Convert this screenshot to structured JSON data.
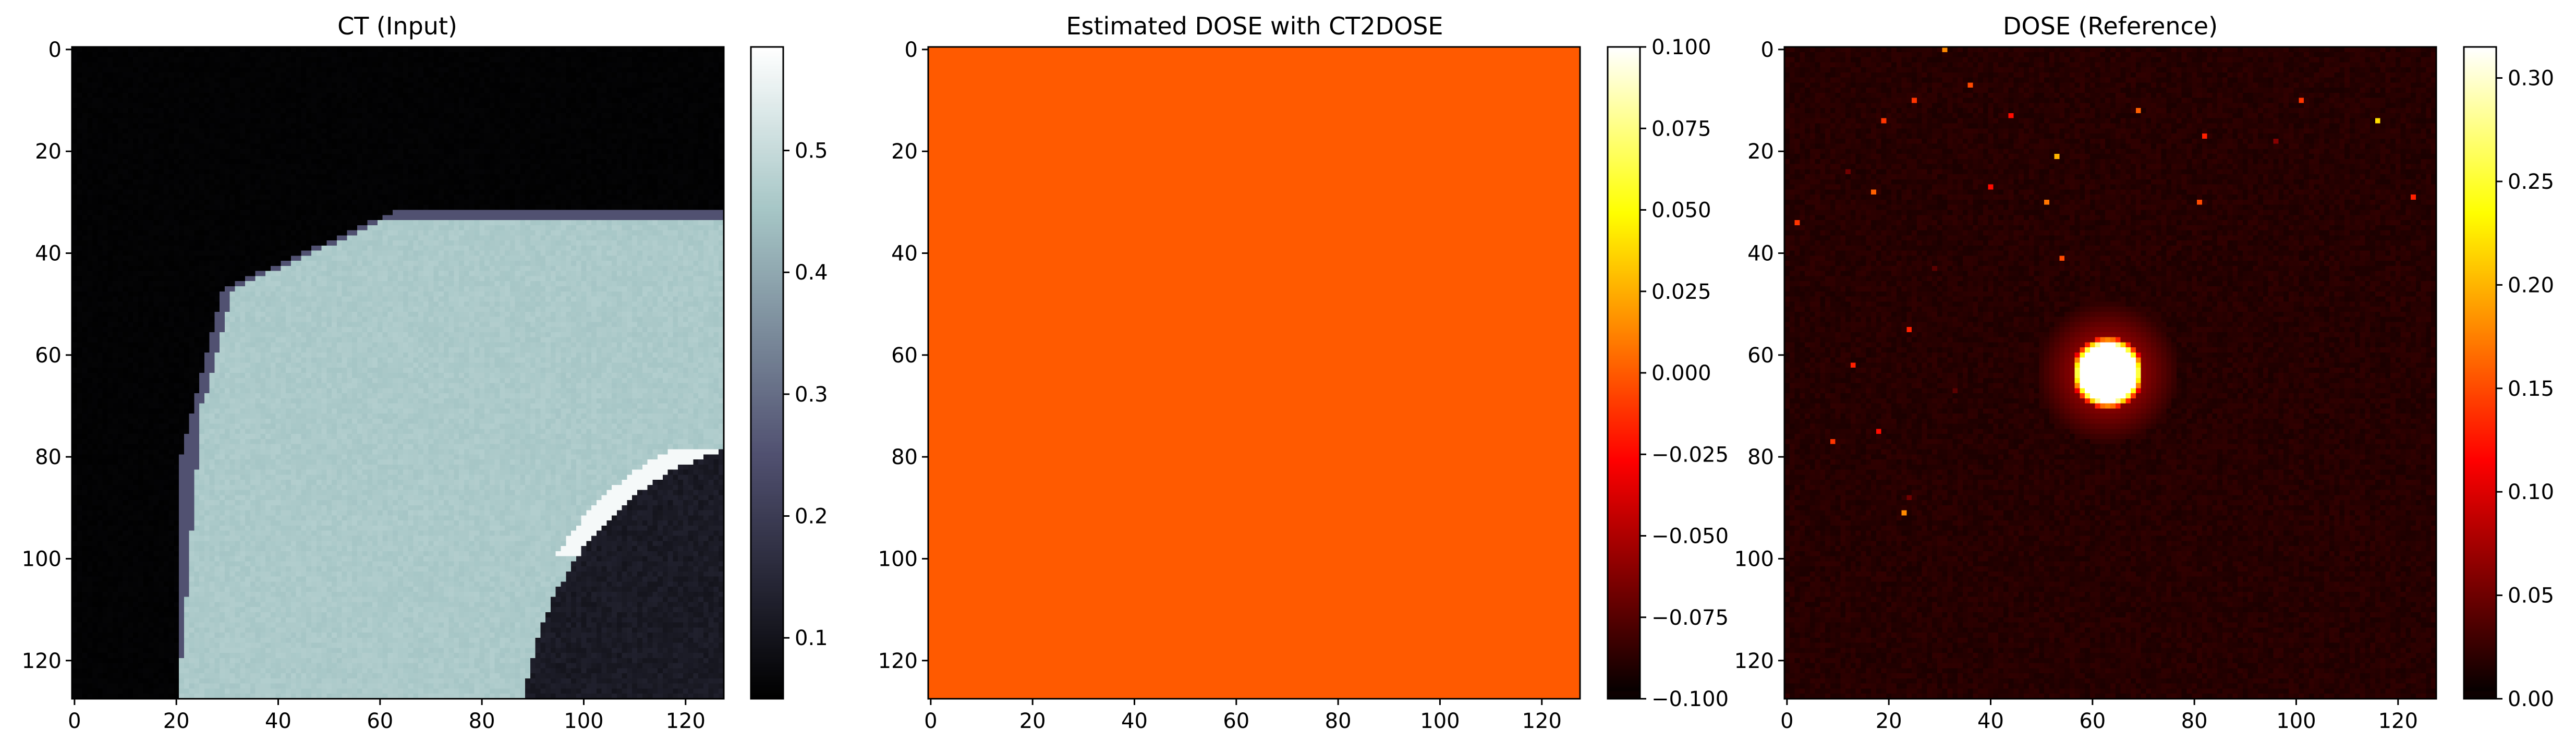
{
  "figure": {
    "background": "#ffffff"
  },
  "chart_data": [
    {
      "type": "heatmap",
      "title": "CT (Input)",
      "colormap": "bone",
      "image_shape": [
        128,
        128
      ],
      "x_ticks": [
        0,
        20,
        40,
        60,
        80,
        100,
        120
      ],
      "y_ticks": [
        0,
        20,
        40,
        60,
        80,
        100,
        120
      ],
      "xlim": [
        -0.5,
        127.5
      ],
      "ylim": [
        127.5,
        -0.5
      ],
      "colorbar": {
        "vmin": 0.05,
        "vmax": 0.585,
        "ticks": [
          0.1,
          0.2,
          0.3,
          0.4,
          0.5
        ],
        "tick_labels": [
          "0.1",
          "0.2",
          "0.3",
          "0.4",
          "0.5"
        ]
      },
      "content": {
        "background_value": 0.052,
        "tissue_value": 0.46,
        "lung_value": 0.1,
        "bright_edge_value": 0.57
      }
    },
    {
      "type": "heatmap",
      "title": "Estimated DOSE with CT2DOSE",
      "colormap": "hot",
      "image_shape": [
        128,
        128
      ],
      "x_ticks": [
        0,
        20,
        40,
        60,
        80,
        100,
        120
      ],
      "y_ticks": [
        0,
        20,
        40,
        60,
        80,
        100,
        120
      ],
      "xlim": [
        -0.5,
        127.5
      ],
      "ylim": [
        127.5,
        -0.5
      ],
      "colorbar": {
        "vmin": -0.1,
        "vmax": 0.1,
        "ticks": [
          0.1,
          0.075,
          0.05,
          0.025,
          0.0,
          -0.025,
          -0.05,
          -0.075,
          -0.1
        ],
        "tick_labels": [
          "0.100",
          "0.075",
          "0.050",
          "0.025",
          "0.000",
          "−0.025",
          "−0.050",
          "−0.075",
          "−0.100"
        ]
      },
      "content": {
        "uniform_value": 0.0,
        "fill_color": "#ff5a00"
      }
    },
    {
      "type": "heatmap",
      "title": "DOSE (Reference)",
      "colormap": "hot",
      "image_shape": [
        128,
        128
      ],
      "x_ticks": [
        0,
        20,
        40,
        60,
        80,
        100,
        120
      ],
      "y_ticks": [
        0,
        20,
        40,
        60,
        80,
        100,
        120
      ],
      "xlim": [
        -0.5,
        127.5
      ],
      "ylim": [
        127.5,
        -0.5
      ],
      "colorbar": {
        "vmin": 0.0,
        "vmax": 0.315,
        "ticks": [
          0.0,
          0.05,
          0.1,
          0.15,
          0.2,
          0.25,
          0.3
        ],
        "tick_labels": [
          "0.00",
          "0.05",
          "0.10",
          "0.15",
          "0.20",
          "0.25",
          "0.30"
        ]
      },
      "content": {
        "background_value": 0.017,
        "hotspot": {
          "center_x": 63,
          "center_y": 63.5,
          "peak": 0.315
        },
        "scatter_points": [
          [
            31,
            0,
            0.18
          ],
          [
            36,
            7,
            0.15
          ],
          [
            19,
            14,
            0.14
          ],
          [
            25,
            10,
            0.14
          ],
          [
            44,
            13,
            0.12
          ],
          [
            69,
            12,
            0.16
          ],
          [
            101,
            10,
            0.14
          ],
          [
            116,
            14,
            0.22
          ],
          [
            82,
            17,
            0.13
          ],
          [
            96,
            18,
            0.06
          ],
          [
            53,
            21,
            0.2
          ],
          [
            12,
            24,
            0.05
          ],
          [
            40,
            27,
            0.12
          ],
          [
            17,
            28,
            0.16
          ],
          [
            51,
            30,
            0.17
          ],
          [
            81,
            30,
            0.15
          ],
          [
            123,
            29,
            0.13
          ],
          [
            2,
            34,
            0.14
          ],
          [
            54,
            41,
            0.15
          ],
          [
            29,
            43,
            0.04
          ],
          [
            24,
            55,
            0.13
          ],
          [
            13,
            62,
            0.13
          ],
          [
            33,
            67,
            0.04
          ],
          [
            18,
            75,
            0.12
          ],
          [
            9,
            77,
            0.14
          ],
          [
            24,
            88,
            0.05
          ],
          [
            23,
            91,
            0.18
          ]
        ]
      }
    }
  ]
}
